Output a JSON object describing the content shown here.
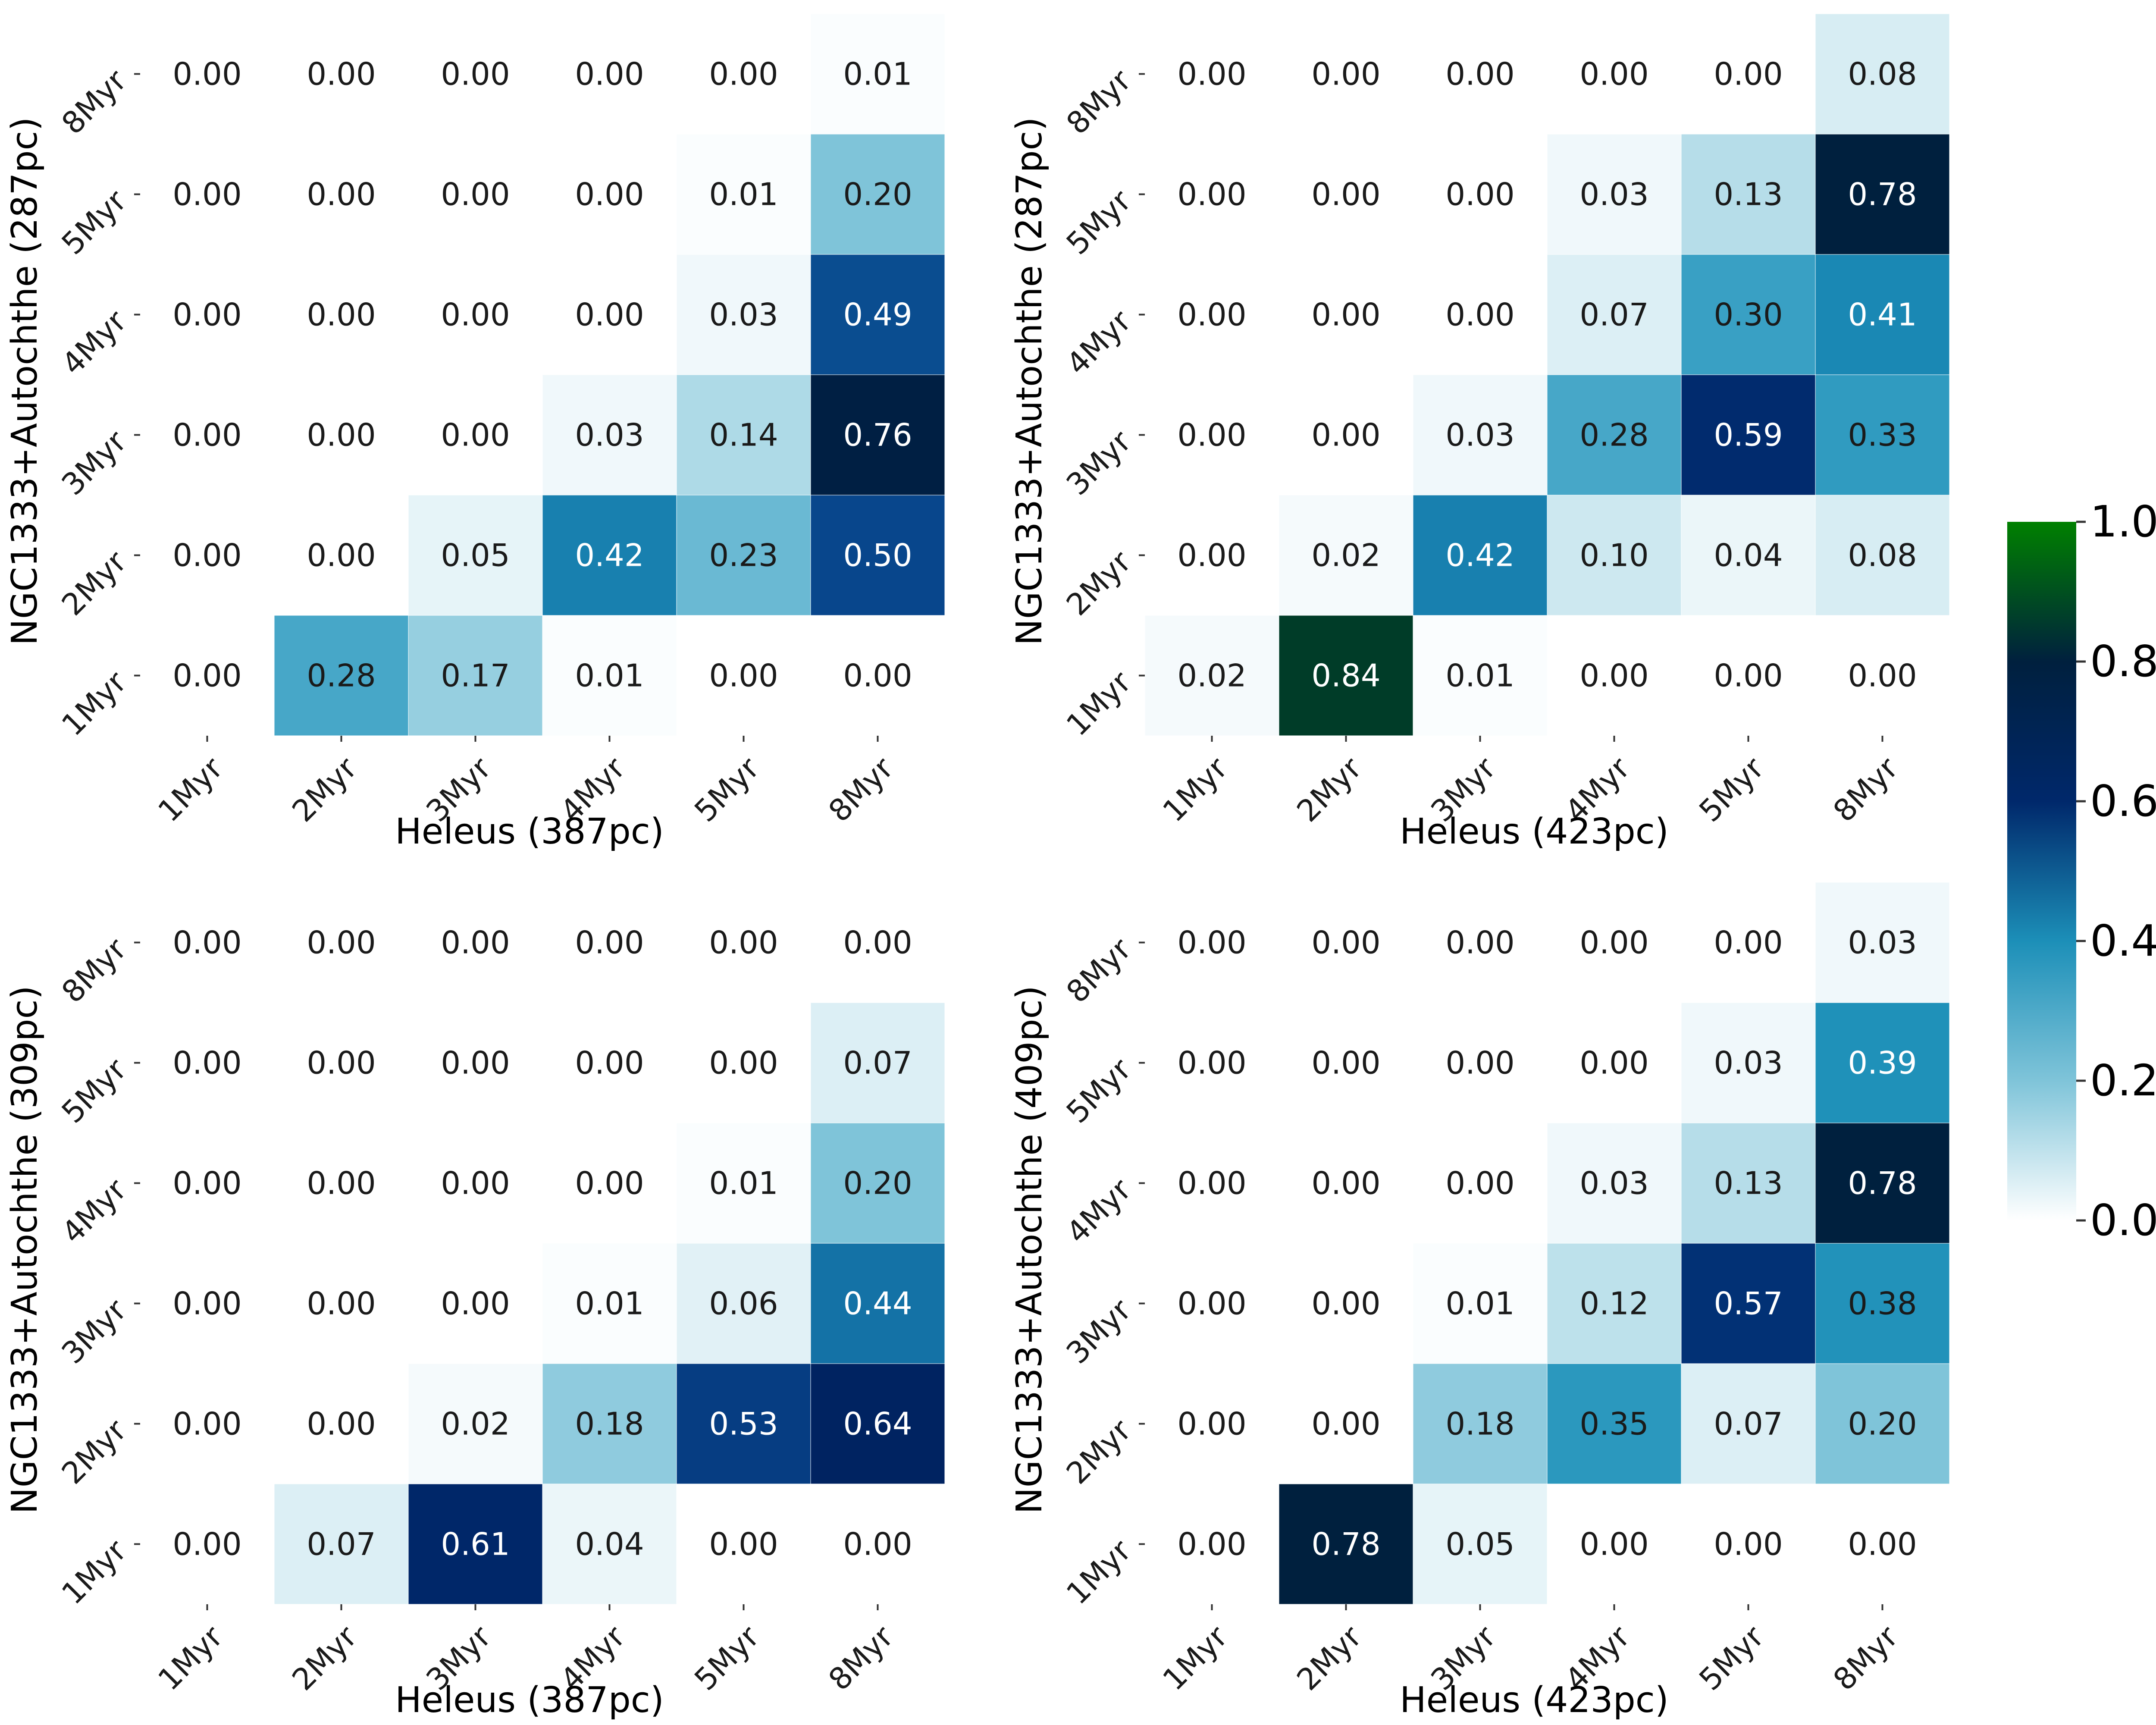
{
  "chart_data": [
    {
      "type": "heatmap",
      "panel": "top-left",
      "xlabel": "Heleus (387pc)",
      "ylabel": "NGC1333+Autochthe (287pc)",
      "x_categories": [
        "1Myr",
        "2Myr",
        "3Myr",
        "4Myr",
        "5Myr",
        "8Myr"
      ],
      "y_categories": [
        "8Myr",
        "5Myr",
        "4Myr",
        "3Myr",
        "2Myr",
        "1Myr"
      ],
      "values": [
        [
          0.0,
          0.0,
          0.0,
          0.0,
          0.0,
          0.01
        ],
        [
          0.0,
          0.0,
          0.0,
          0.0,
          0.01,
          0.2
        ],
        [
          0.0,
          0.0,
          0.0,
          0.0,
          0.03,
          0.49
        ],
        [
          0.0,
          0.0,
          0.0,
          0.03,
          0.14,
          0.76
        ],
        [
          0.0,
          0.0,
          0.05,
          0.42,
          0.23,
          0.5
        ],
        [
          0.0,
          0.28,
          0.17,
          0.01,
          0.0,
          0.0
        ]
      ]
    },
    {
      "type": "heatmap",
      "panel": "top-right",
      "xlabel": "Heleus (423pc)",
      "ylabel": "NGC1333+Autochthe (287pc)",
      "x_categories": [
        "1Myr",
        "2Myr",
        "3Myr",
        "4Myr",
        "5Myr",
        "8Myr"
      ],
      "y_categories": [
        "8Myr",
        "5Myr",
        "4Myr",
        "3Myr",
        "2Myr",
        "1Myr"
      ],
      "values": [
        [
          0.0,
          0.0,
          0.0,
          0.0,
          0.0,
          0.08
        ],
        [
          0.0,
          0.0,
          0.0,
          0.03,
          0.13,
          0.78
        ],
        [
          0.0,
          0.0,
          0.0,
          0.07,
          0.3,
          0.41
        ],
        [
          0.0,
          0.0,
          0.03,
          0.28,
          0.59,
          0.33
        ],
        [
          0.0,
          0.02,
          0.42,
          0.1,
          0.04,
          0.08
        ],
        [
          0.02,
          0.84,
          0.01,
          0.0,
          0.0,
          0.0
        ]
      ]
    },
    {
      "type": "heatmap",
      "panel": "bottom-left",
      "xlabel": "Heleus (387pc)",
      "ylabel": "NGC1333+Autochthe (309pc)",
      "x_categories": [
        "1Myr",
        "2Myr",
        "3Myr",
        "4Myr",
        "5Myr",
        "8Myr"
      ],
      "y_categories": [
        "8Myr",
        "5Myr",
        "4Myr",
        "3Myr",
        "2Myr",
        "1Myr"
      ],
      "values": [
        [
          0.0,
          0.0,
          0.0,
          0.0,
          0.0,
          0.0
        ],
        [
          0.0,
          0.0,
          0.0,
          0.0,
          0.0,
          0.07
        ],
        [
          0.0,
          0.0,
          0.0,
          0.0,
          0.01,
          0.2
        ],
        [
          0.0,
          0.0,
          0.0,
          0.01,
          0.06,
          0.44
        ],
        [
          0.0,
          0.0,
          0.02,
          0.18,
          0.53,
          0.64
        ],
        [
          0.0,
          0.07,
          0.61,
          0.04,
          0.0,
          0.0
        ]
      ]
    },
    {
      "type": "heatmap",
      "panel": "bottom-right",
      "xlabel": "Heleus (423pc)",
      "ylabel": "NGC1333+Autochthe (409pc)",
      "x_categories": [
        "1Myr",
        "2Myr",
        "3Myr",
        "4Myr",
        "5Myr",
        "8Myr"
      ],
      "y_categories": [
        "8Myr",
        "5Myr",
        "4Myr",
        "3Myr",
        "2Myr",
        "1Myr"
      ],
      "values": [
        [
          0.0,
          0.0,
          0.0,
          0.0,
          0.0,
          0.03
        ],
        [
          0.0,
          0.0,
          0.0,
          0.0,
          0.03,
          0.39
        ],
        [
          0.0,
          0.0,
          0.0,
          0.03,
          0.13,
          0.78
        ],
        [
          0.0,
          0.0,
          0.01,
          0.12,
          0.57,
          0.38
        ],
        [
          0.0,
          0.0,
          0.18,
          0.35,
          0.07,
          0.2
        ],
        [
          0.0,
          0.78,
          0.05,
          0.0,
          0.0,
          0.0
        ]
      ]
    }
  ],
  "colorbar": {
    "colormap": "ocean_r",
    "range": [
      0.0,
      1.0
    ],
    "ticks": [
      "0.0",
      "0.2",
      "0.4",
      "0.6",
      "0.8",
      "1.0"
    ]
  },
  "annotation_format": "0.00"
}
